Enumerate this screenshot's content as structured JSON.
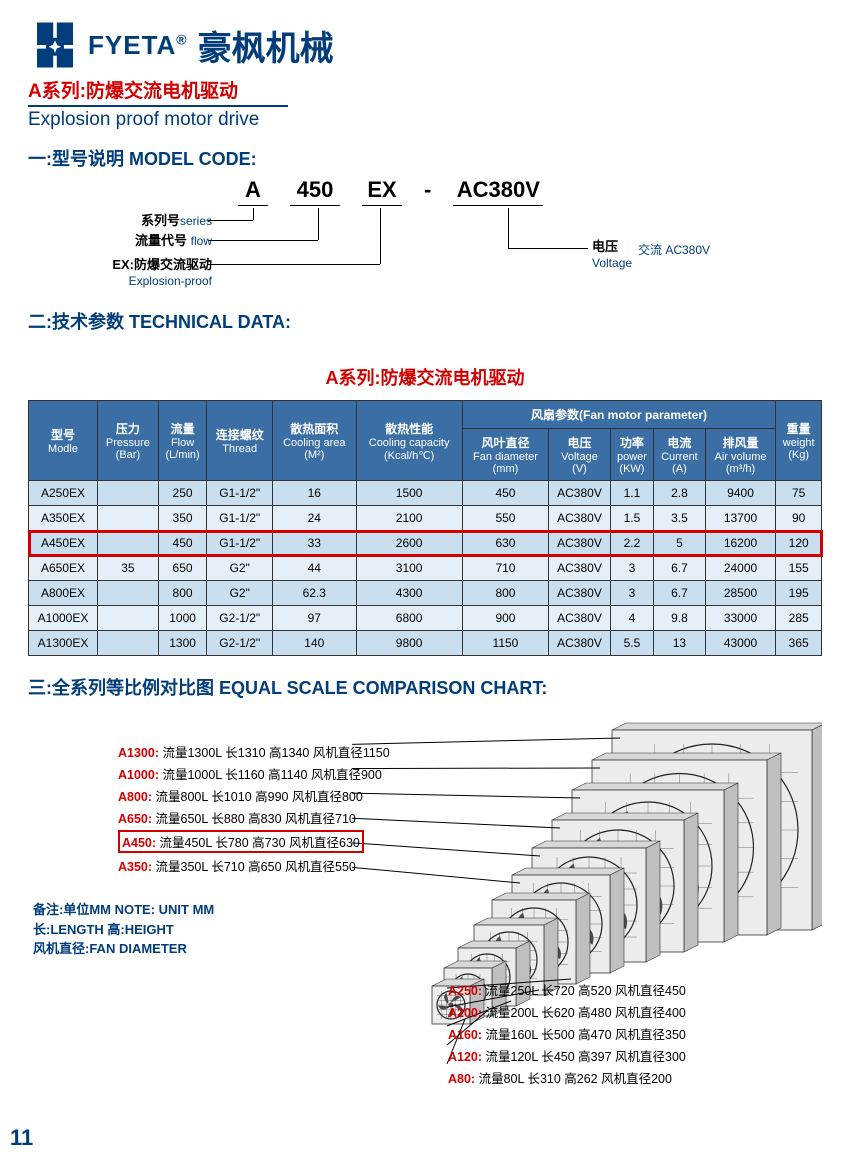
{
  "brand": {
    "en": "FYETA",
    "reg": "®",
    "cn": "豪枫机械"
  },
  "series": {
    "cn": "A系列:防爆交流电机驱动",
    "en": "Explosion proof motor drive"
  },
  "section1": {
    "title": "一:型号说明 MODEL CODE:"
  },
  "modelcode": {
    "segments": [
      "A",
      "450",
      "EX",
      "-",
      "AC380V"
    ],
    "labels": {
      "series": {
        "cn": "系列号",
        "en": "series"
      },
      "flow": {
        "cn": "流量代号",
        "en": "flow"
      },
      "ex": {
        "prefix": "EX:",
        "cn": "防爆交流驱动",
        "en": "Explosion-proof"
      },
      "voltage": {
        "cn": "电压",
        "en": "Voltage",
        "val": "交流 AC380V"
      }
    }
  },
  "section2": {
    "title": "二:技术参数 TECHNICAL DATA:"
  },
  "table": {
    "title": "A系列:防爆交流电机驱动",
    "header_colors": {
      "bg": "#3a6ea5",
      "fg": "#ffffff"
    },
    "row_colors": {
      "odd": "#c9dff0",
      "even": "#e4eff8"
    },
    "highlight_color": "#d40000",
    "highlight_row_index": 2,
    "fan_group": "风扇参数(Fan motor parameter)",
    "columns": [
      {
        "cn": "型号",
        "en": "Modle",
        "unit": ""
      },
      {
        "cn": "压力",
        "en": "Pressure",
        "unit": "(Bar)"
      },
      {
        "cn": "流量",
        "en": "Flow",
        "unit": "(L/min)"
      },
      {
        "cn": "连接螺纹",
        "en": "Thread",
        "unit": ""
      },
      {
        "cn": "散热面积",
        "en": "Cooling area",
        "unit": "(M²)"
      },
      {
        "cn": "散热性能",
        "en": "Cooling capacity",
        "unit": "(Kcal/h℃)"
      },
      {
        "cn": "风叶直径",
        "en": "Fan diameter",
        "unit": "(mm)"
      },
      {
        "cn": "电压",
        "en": "Voltage",
        "unit": "(V)"
      },
      {
        "cn": "功率",
        "en": "power",
        "unit": "(KW)"
      },
      {
        "cn": "电流",
        "en": "Current",
        "unit": "(A)"
      },
      {
        "cn": "排风量",
        "en": "Air volume",
        "unit": "(m³/h)"
      },
      {
        "cn": "重量",
        "en": "weight",
        "unit": "(Kg)"
      }
    ],
    "rows": [
      [
        "A250EX",
        "",
        "250",
        "G1-1/2\"",
        "16",
        "1500",
        "450",
        "AC380V",
        "1.1",
        "2.8",
        "9400",
        "75"
      ],
      [
        "A350EX",
        "",
        "350",
        "G1-1/2\"",
        "24",
        "2100",
        "550",
        "AC380V",
        "1.5",
        "3.5",
        "13700",
        "90"
      ],
      [
        "A450EX",
        "",
        "450",
        "G1-1/2\"",
        "33",
        "2600",
        "630",
        "AC380V",
        "2.2",
        "5",
        "16200",
        "120"
      ],
      [
        "A650EX",
        "35",
        "650",
        "G2\"",
        "44",
        "3100",
        "710",
        "AC380V",
        "3",
        "6.7",
        "24000",
        "155"
      ],
      [
        "A800EX",
        "",
        "800",
        "G2\"",
        "62.3",
        "4300",
        "800",
        "AC380V",
        "3",
        "6.7",
        "28500",
        "195"
      ],
      [
        "A1000EX",
        "",
        "1000",
        "G2-1/2\"",
        "97",
        "6800",
        "900",
        "AC380V",
        "4",
        "9.8",
        "33000",
        "285"
      ],
      [
        "A1300EX",
        "",
        "1300",
        "G2-1/2\"",
        "140",
        "9800",
        "1150",
        "AC380V",
        "5.5",
        "13",
        "43000",
        "365"
      ]
    ]
  },
  "section3": {
    "title": "三:全系列等比例对比图 EQUAL SCALE COMPARISON CHART:"
  },
  "comparison": {
    "note_lines": [
      "备注:单位MM   NOTE: UNIT MM",
      "长:LENGTH     高:HEIGHT",
      "风机直径:FAN DIAMETER"
    ],
    "left_items": [
      {
        "model": "A1300:",
        "spec": "流量1300L 长1310 高1340 风机直径1150"
      },
      {
        "model": "A1000:",
        "spec": "流量1000L 长1160 高1140 风机直径900"
      },
      {
        "model": "A800:",
        "spec": "流量800L 长1010 高990 风机直径800"
      },
      {
        "model": "A650:",
        "spec": "流量650L 长880 高830 风机直径710"
      },
      {
        "model": "A450:",
        "spec": "流量450L 长780 高730 风机直径630",
        "highlight": true
      },
      {
        "model": "A350:",
        "spec": "流量350L 长710 高650 风机直径550"
      }
    ],
    "right_items": [
      {
        "model": "A250:",
        "spec": "流量250L 长720 高520 风机直径450"
      },
      {
        "model": "A200:",
        "spec": "流量200L 长620 高480 风机直径400"
      },
      {
        "model": "A160:",
        "spec": "流量160L 长500 高470 风机直径350"
      },
      {
        "model": "A120:",
        "spec": "流量120L 长450 高397 风机直径300"
      },
      {
        "model": "A80:",
        "spec": "流量80L 长310 高262 风机直径200"
      }
    ],
    "fan_fill": "#4a4a4a",
    "frame_stroke": "#333333"
  },
  "page_number": "11"
}
